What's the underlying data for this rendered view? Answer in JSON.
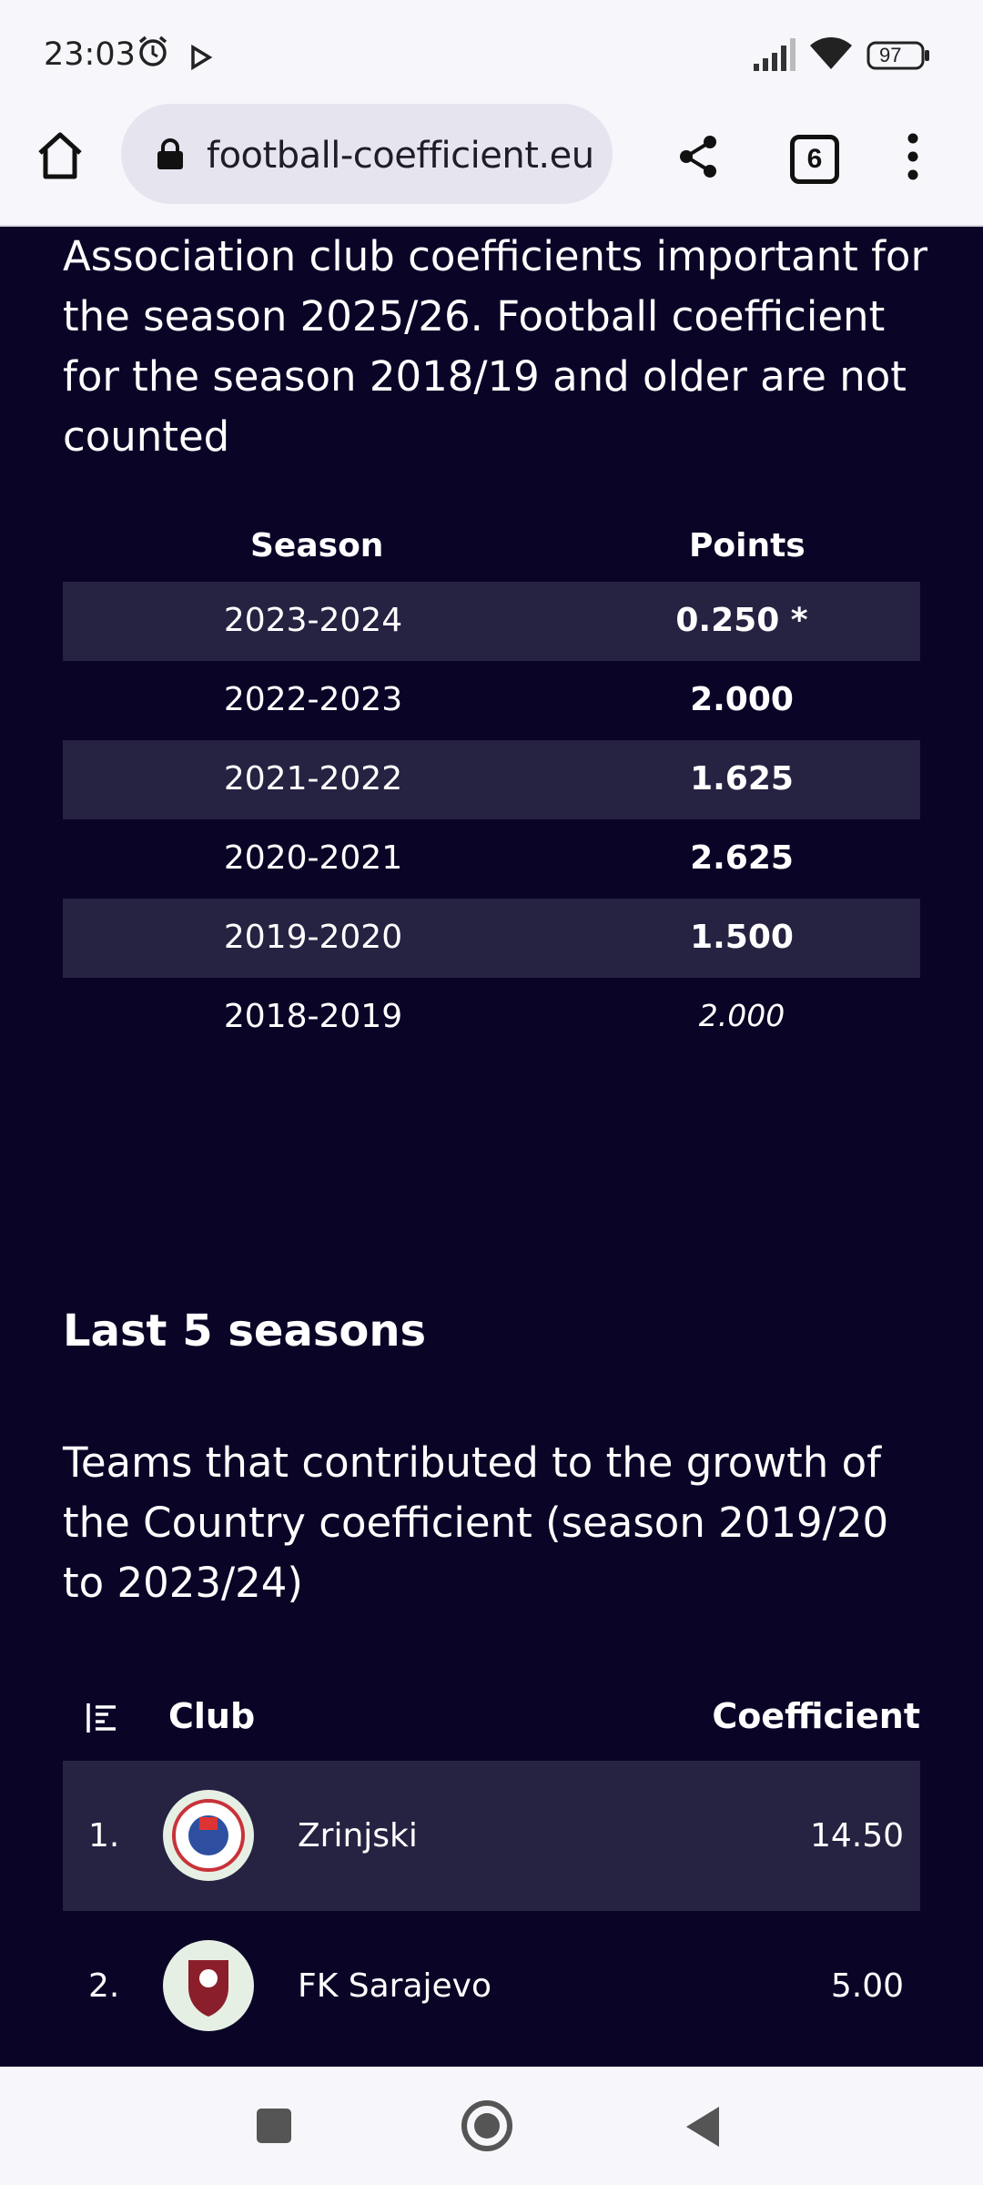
{
  "status_bar": {
    "time": "23:03",
    "battery": "97",
    "icons": [
      "alarm-icon",
      "play-icon",
      "signal-icon",
      "wifi-icon",
      "battery-icon"
    ]
  },
  "browser": {
    "url": "football-coefficient.eu",
    "tab_count": "6",
    "icons": [
      "home-icon",
      "lock-icon",
      "share-icon",
      "tabs-icon",
      "more-icon"
    ]
  },
  "intro_text": "Association club coefficients important for the season 2025/26. Football coefficient for the season 2018/19 and older are not counted",
  "season_table": {
    "headers": {
      "season": "Season",
      "points": "Points"
    },
    "rows": [
      {
        "season": "2023-2024",
        "points": "0.250 *",
        "alt": true,
        "italic": false
      },
      {
        "season": "2022-2023",
        "points": "2.000",
        "alt": false,
        "italic": false
      },
      {
        "season": "2021-2022",
        "points": "1.625",
        "alt": true,
        "italic": false
      },
      {
        "season": "2020-2021",
        "points": "2.625",
        "alt": false,
        "italic": false
      },
      {
        "season": "2019-2020",
        "points": "1.500",
        "alt": true,
        "italic": false
      },
      {
        "season": "2018-2019",
        "points": "2.000",
        "alt": false,
        "italic": true
      }
    ]
  },
  "last5": {
    "heading": "Last 5 seasons",
    "description": "Teams that contributed to the growth of the Country coefficient (season 2019/20 to 2023/24)"
  },
  "club_table": {
    "headers": {
      "club": "Club",
      "coefficient": "Coefficient"
    },
    "rows": [
      {
        "rank": "1.",
        "club": "Zrinjski",
        "coefficient": "14.50",
        "logo": "zrinjski-logo"
      },
      {
        "rank": "2.",
        "club": "FK Sarajevo",
        "coefficient": "5.00",
        "logo": "fk-sarajevo-logo"
      }
    ]
  },
  "colors": {
    "page_bg": "#0a0527",
    "row_alt": "#262242",
    "chrome_bg": "#f7f6fb",
    "fab": "#1e8a4c"
  }
}
